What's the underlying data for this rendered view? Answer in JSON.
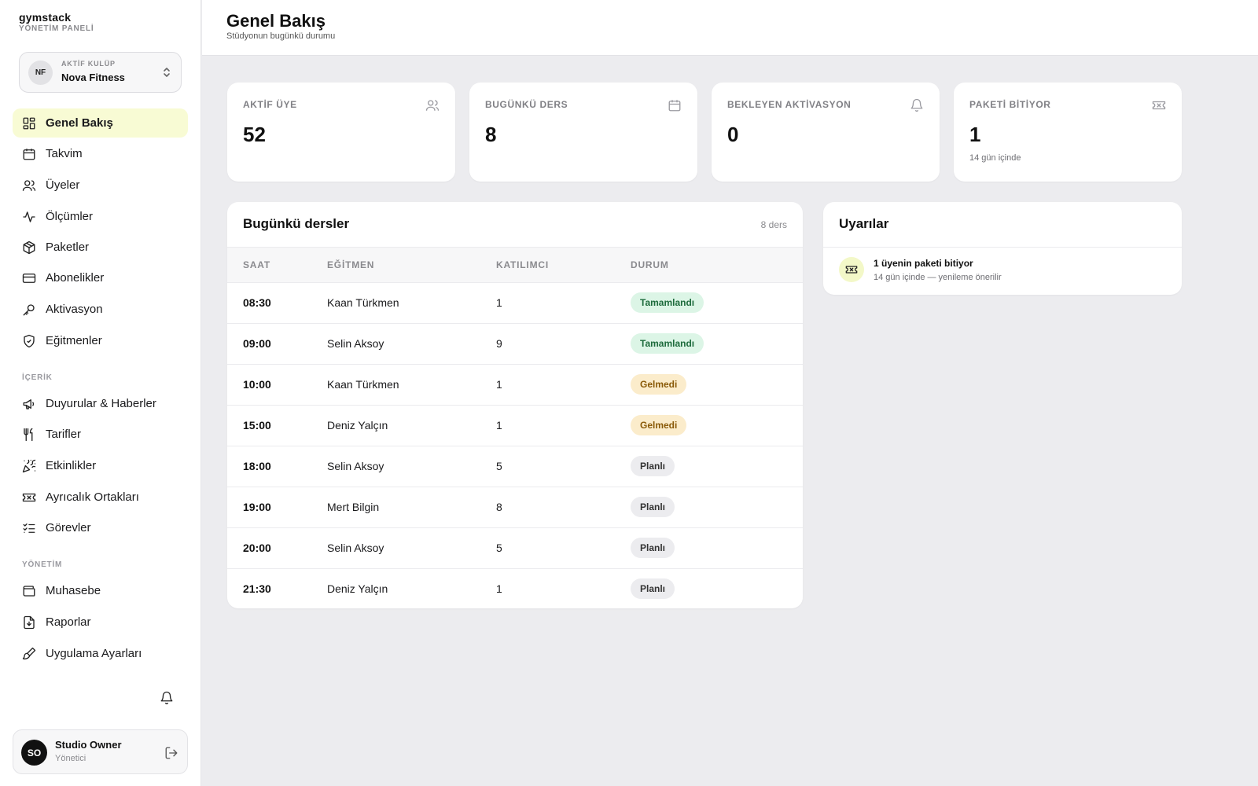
{
  "brand": {
    "name": "gymstack",
    "subtitle": "YÖNETİM PANELİ"
  },
  "club": {
    "initials": "NF",
    "kicker": "AKTİF KULÜP",
    "name": "Nova Fitness"
  },
  "nav": {
    "main": [
      {
        "label": "Genel Bakış",
        "icon": "grid-icon",
        "active": true
      },
      {
        "label": "Takvim",
        "icon": "calendar-icon"
      },
      {
        "label": "Üyeler",
        "icon": "users-icon"
      },
      {
        "label": "Ölçümler",
        "icon": "activity-icon"
      },
      {
        "label": "Paketler",
        "icon": "package-icon"
      },
      {
        "label": "Abonelikler",
        "icon": "credit-card-icon"
      },
      {
        "label": "Aktivasyon",
        "icon": "key-icon"
      },
      {
        "label": "Eğitmenler",
        "icon": "shield-icon"
      }
    ],
    "content_section": "İÇERİK",
    "content": [
      {
        "label": "Duyurular & Haberler",
        "icon": "megaphone-icon"
      },
      {
        "label": "Tarifler",
        "icon": "utensils-icon"
      },
      {
        "label": "Etkinlikler",
        "icon": "party-popper-icon"
      },
      {
        "label": "Ayrıcalık Ortakları",
        "icon": "ticket-icon"
      },
      {
        "label": "Görevler",
        "icon": "list-checks-icon"
      }
    ],
    "admin_section": "YÖNETİM",
    "admin": [
      {
        "label": "Muhasebe",
        "icon": "wallet-icon"
      },
      {
        "label": "Raporlar",
        "icon": "file-download-icon"
      },
      {
        "label": "Uygulama Ayarları",
        "icon": "brush-icon"
      }
    ]
  },
  "user": {
    "initials": "SO",
    "name": "Studio Owner",
    "role": "Yönetici"
  },
  "header": {
    "title": "Genel Bakış",
    "subtitle": "Stüdyonun bugünkü durumu"
  },
  "stats": [
    {
      "label": "AKTİF ÜYE",
      "value": "52",
      "note": "",
      "icon": "users-icon"
    },
    {
      "label": "BUGÜNKÜ DERS",
      "value": "8",
      "note": "",
      "icon": "calendar-icon"
    },
    {
      "label": "BEKLEYEN AKTİVASYON",
      "value": "0",
      "note": "",
      "icon": "bell-icon"
    },
    {
      "label": "PAKETİ BİTİYOR",
      "value": "1",
      "note": "14 gün içinde",
      "icon": "ticket-icon"
    }
  ],
  "lessons": {
    "title": "Bugünkü dersler",
    "count": "8 ders",
    "columns": [
      "SAAT",
      "EĞİTMEN",
      "KATILIMCI",
      "DURUM"
    ],
    "rows": [
      {
        "time": "08:30",
        "trainer": "Kaan Türkmen",
        "participants": "1",
        "status": "Tamamlandı",
        "kind": "done"
      },
      {
        "time": "09:00",
        "trainer": "Selin Aksoy",
        "participants": "9",
        "status": "Tamamlandı",
        "kind": "done"
      },
      {
        "time": "10:00",
        "trainer": "Kaan Türkmen",
        "participants": "1",
        "status": "Gelmedi",
        "kind": "miss"
      },
      {
        "time": "15:00",
        "trainer": "Deniz Yalçın",
        "participants": "1",
        "status": "Gelmedi",
        "kind": "miss"
      },
      {
        "time": "18:00",
        "trainer": "Selin Aksoy",
        "participants": "5",
        "status": "Planlı",
        "kind": "plan"
      },
      {
        "time": "19:00",
        "trainer": "Mert Bilgin",
        "participants": "8",
        "status": "Planlı",
        "kind": "plan"
      },
      {
        "time": "20:00",
        "trainer": "Selin Aksoy",
        "participants": "5",
        "status": "Planlı",
        "kind": "plan"
      },
      {
        "time": "21:30",
        "trainer": "Deniz Yalçın",
        "participants": "1",
        "status": "Planlı",
        "kind": "plan"
      }
    ]
  },
  "alerts": {
    "title": "Uyarılar",
    "items": [
      {
        "title": "1 üyenin paketi bitiyor",
        "subtitle": "14 gün içinde — yenileme önerilir",
        "icon": "ticket-icon"
      }
    ]
  },
  "colors": {
    "accent": "#f8fbd4",
    "done_bg": "#dcf5e6",
    "miss_bg": "#fbeccb",
    "plan_bg": "#ececef"
  }
}
